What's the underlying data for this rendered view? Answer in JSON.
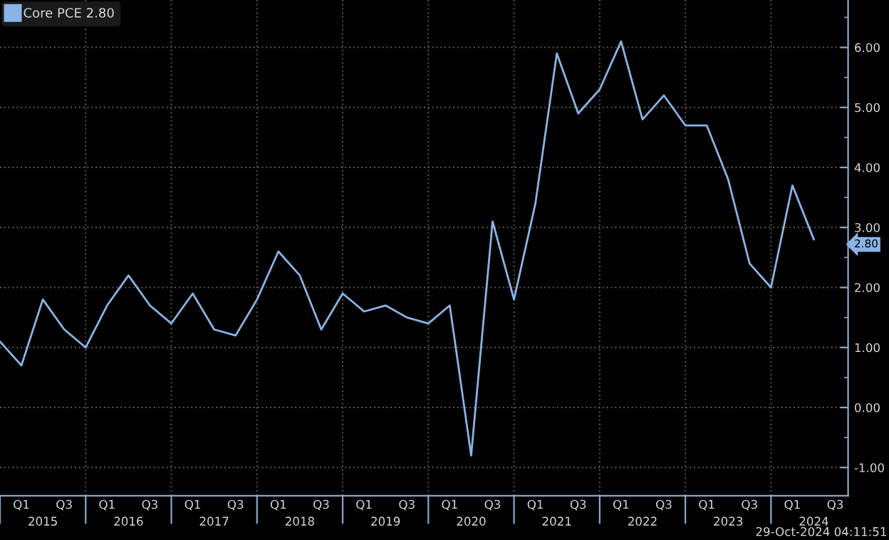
{
  "chart_data": {
    "type": "line",
    "categories": [
      null,
      "Q1",
      "2015",
      "Q3",
      null,
      "Q1",
      "2016",
      "Q3",
      null,
      "Q1",
      "2017",
      "Q3",
      null,
      "Q1",
      "2018",
      "Q3",
      null,
      "Q1",
      "2019",
      "Q3",
      null,
      "Q1",
      "2020",
      "Q3",
      null,
      "Q1",
      "2021",
      "Q3",
      null,
      "Q1",
      "2022",
      "Q3",
      null,
      "Q1",
      "2023",
      "Q3",
      null,
      "Q1",
      "2024",
      "Q3"
    ],
    "series": [
      {
        "name": "Core PCE 2.80",
        "color": "#8ab4e6",
        "values": [
          1.1,
          0.7,
          1.8,
          1.3,
          1.0,
          1.7,
          2.2,
          1.7,
          1.4,
          1.9,
          1.3,
          1.2,
          1.8,
          2.6,
          2.2,
          1.3,
          1.9,
          1.6,
          1.7,
          1.5,
          1.4,
          1.7,
          -0.8,
          3.1,
          1.8,
          3.4,
          5.9,
          4.9,
          5.3,
          6.1,
          4.8,
          5.2,
          4.7,
          4.7,
          3.8,
          2.4,
          2.0,
          3.7,
          2.8,
          null
        ]
      }
    ],
    "ylim": [
      -1.47,
      6.79
    ],
    "yticks": [
      {
        "value": -1,
        "label": "-1.00"
      },
      {
        "value": 0,
        "label": "0.00"
      },
      {
        "value": 1,
        "label": "1.00"
      },
      {
        "value": 2,
        "label": "2.00"
      },
      {
        "value": 3,
        "label": "3.00"
      },
      {
        "value": 4,
        "label": "4.00"
      },
      {
        "value": 5,
        "label": "5.00"
      },
      {
        "value": 6,
        "label": "6.00"
      }
    ],
    "grid": true,
    "legend": "top left",
    "marker": "none",
    "line_style": "solid",
    "annotations": [
      "2.80",
      "29-Oct-2024 04:11:51"
    ]
  }
}
